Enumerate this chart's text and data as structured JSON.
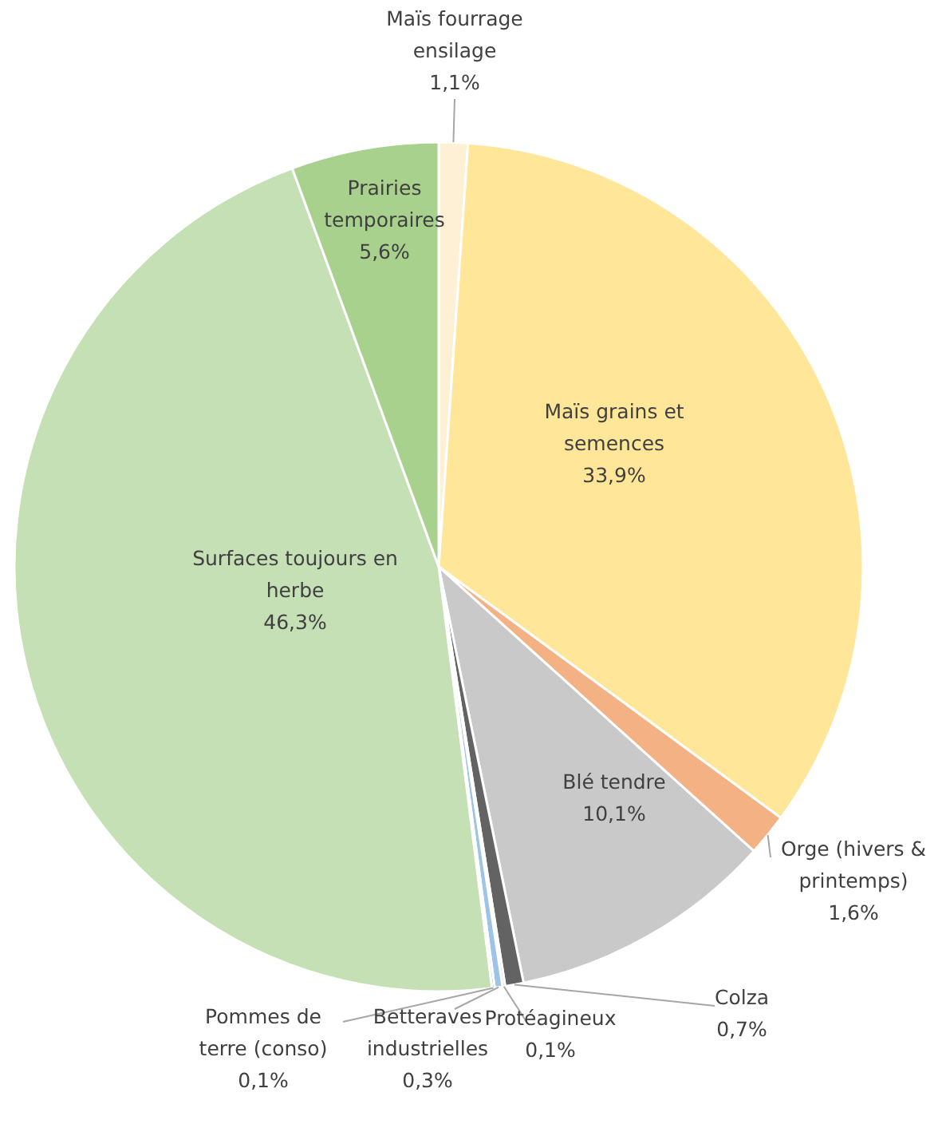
{
  "chart_data": {
    "type": "pie",
    "categories": [
      "Maïs fourrage ensilage",
      "Maïs grains et semences",
      "Orge (hivers & printemps)",
      "Blé tendre",
      "Colza",
      "Protéagineux",
      "Betteraves industrielles",
      "Pommes de terre (conso)",
      "Surfaces toujours en herbe",
      "Prairies temporaires"
    ],
    "values": [
      1.1,
      33.9,
      1.6,
      10.1,
      0.7,
      0.1,
      0.3,
      0.1,
      46.3,
      5.6
    ],
    "colors": [
      "#fdf0d5",
      "#ffe699",
      "#f4b183",
      "#c9c9c9",
      "#636363",
      "#a5a5a5",
      "#9dc3e6",
      "#4472c4",
      "#c5e0b4",
      "#a9d18e"
    ],
    "value_labels": [
      "1,1%",
      "33,9%",
      "1,6%",
      "10,1%",
      "0,7%",
      "0,1%",
      "0,3%",
      "0,1%",
      "46,3%",
      "5,6%"
    ]
  }
}
